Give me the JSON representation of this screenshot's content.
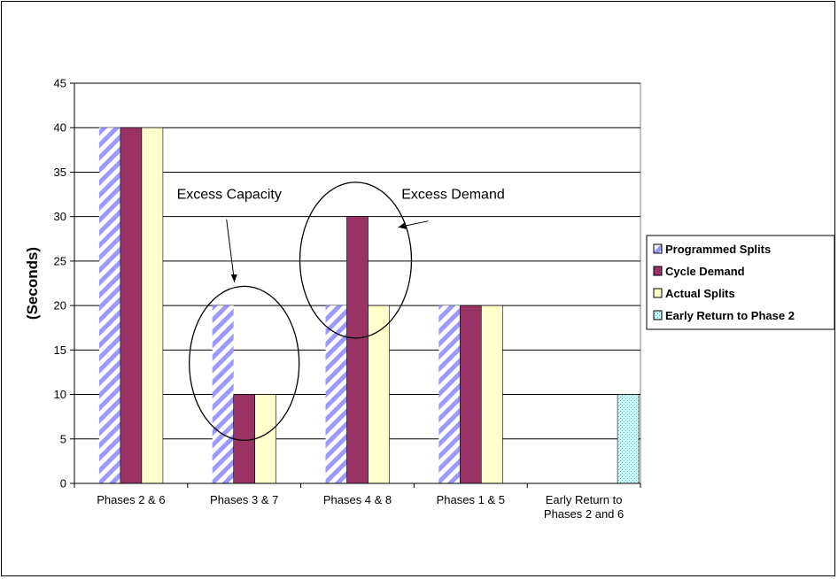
{
  "chart_data": {
    "type": "bar",
    "title": "",
    "xlabel": "",
    "ylabel": "(Seconds)",
    "ylim": [
      0,
      45
    ],
    "yticks": [
      0,
      5,
      10,
      15,
      20,
      25,
      30,
      35,
      40,
      45
    ],
    "grid": true,
    "legend_position": "right",
    "categories": [
      [
        "Phases 2 & 6"
      ],
      [
        "Phases 3 & 7"
      ],
      [
        "Phases 4 & 8"
      ],
      [
        "Phases 1 & 5"
      ],
      [
        "Early Return to",
        "Phases 2 and 6"
      ]
    ],
    "series": [
      {
        "name": "Programmed Splits",
        "values": [
          40,
          20,
          20,
          20,
          null
        ],
        "color": "#9999ff",
        "pattern": "diagonal-stripes"
      },
      {
        "name": "Cycle Demand",
        "values": [
          40,
          10,
          30,
          20,
          null
        ],
        "color": "#993366",
        "pattern": "solid"
      },
      {
        "name": "Actual Splits",
        "values": [
          40,
          10,
          20,
          20,
          null
        ],
        "color": "#ffffcc",
        "pattern": "solid"
      },
      {
        "name": "Early Return to Phase 2",
        "values": [
          null,
          null,
          null,
          null,
          10
        ],
        "color": "#ccffff",
        "pattern": "dotted"
      }
    ],
    "annotations": [
      {
        "text": "Excess Capacity",
        "category_index": 1
      },
      {
        "text": "Excess Demand",
        "category_index": 2
      }
    ]
  }
}
